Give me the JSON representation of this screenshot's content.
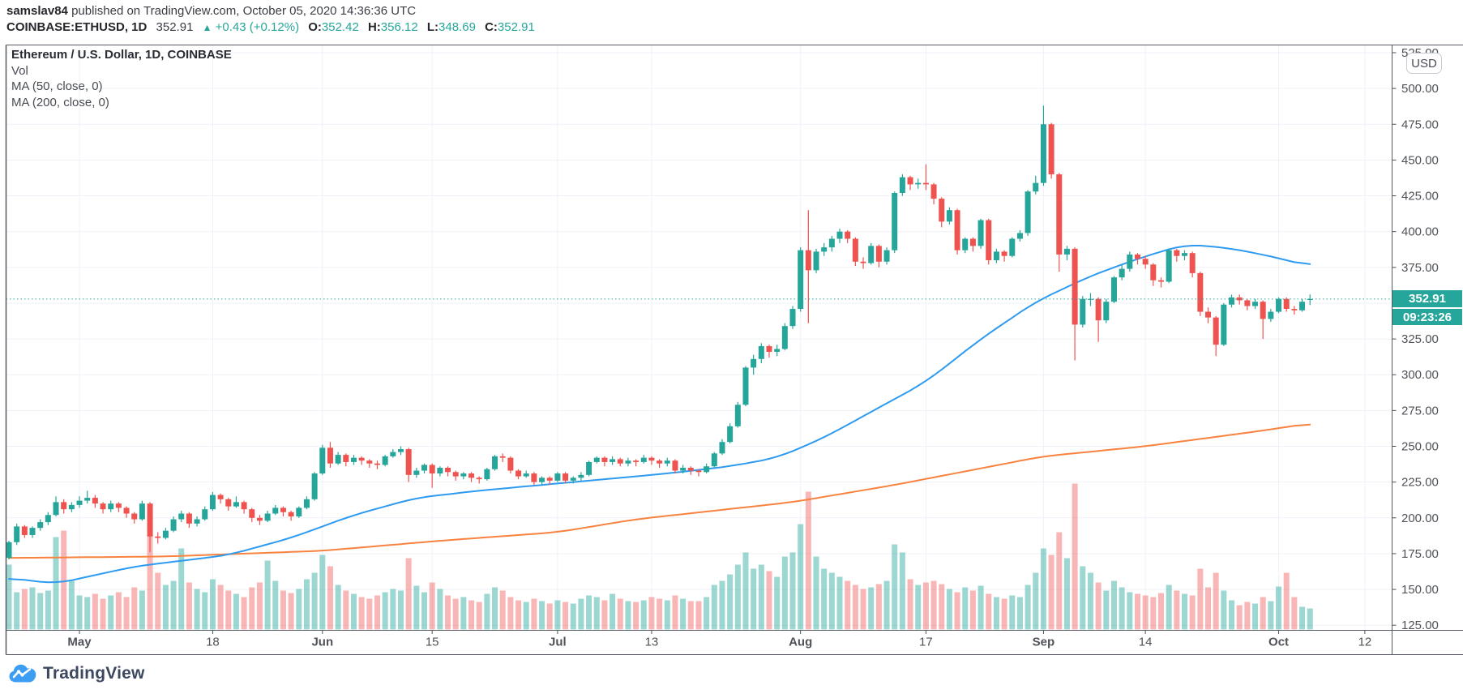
{
  "header": {
    "byline": {
      "author": "samslav84",
      "rest": " published on TradingView.com, October 05, 2020 14:36:36 UTC"
    },
    "quote": {
      "symbol_interval": "COINBASE:ETHUSD, 1D",
      "last": "352.91",
      "direction_icon": "▲",
      "change": "+0.43 (+0.12%)",
      "ohlc": [
        {
          "label": "O:",
          "value": "352.42"
        },
        {
          "label": "H:",
          "value": "356.12"
        },
        {
          "label": "L:",
          "value": "348.69"
        },
        {
          "label": "C:",
          "value": "352.91"
        }
      ]
    }
  },
  "legend": {
    "title": "Ethereum / U.S. Dollar, 1D, COINBASE",
    "rows": [
      "Vol",
      "MA (50, close, 0)",
      "MA (200, close, 0)"
    ]
  },
  "axis": {
    "currency_button": "USD"
  },
  "price_label": {
    "value": "352.91",
    "countdown": "09:23:26"
  },
  "footer": {
    "brand": "TradingView"
  },
  "colors": {
    "up": "#26a69a",
    "down": "#ef5350",
    "vol_up": "rgba(38,166,154,0.45)",
    "vol_down": "rgba(239,83,80,0.42)",
    "ma50": "#2e9bf0",
    "ma200": "#f8823f",
    "grid": "#eef1f7",
    "axis_text": "#4f5258",
    "pane_border": "#555a63",
    "last_price_line": "#26a69a",
    "label_bg": "#26a69a"
  },
  "chart_data": {
    "type": "candlestick",
    "symbol": "COINBASE:ETHUSD",
    "interval": "1D",
    "title": "Ethereum / U.S. Dollar, 1D, COINBASE",
    "start_date": "2020-04-22",
    "end_date": "2020-10-05",
    "last_price": 352.91,
    "y_axis": {
      "label": "USD",
      "ticks": [
        125,
        150,
        175,
        200,
        225,
        250,
        275,
        300,
        325,
        350,
        375,
        400,
        425,
        450,
        475,
        500,
        525
      ],
      "range": [
        121,
        531
      ]
    },
    "x_axis": {
      "ticks": [
        {
          "label": "May",
          "i": 9
        },
        {
          "label": "18",
          "i": 26
        },
        {
          "label": "Jun",
          "i": 40
        },
        {
          "label": "15",
          "i": 54
        },
        {
          "label": "Jul",
          "i": 70
        },
        {
          "label": "13",
          "i": 82
        },
        {
          "label": "Aug",
          "i": 101
        },
        {
          "label": "17",
          "i": 117
        },
        {
          "label": "Sep",
          "i": 132
        },
        {
          "label": "14",
          "i": 145
        },
        {
          "label": "Oct",
          "i": 162
        },
        {
          "label": "12",
          "i": 173
        }
      ]
    },
    "volume_units": "relative",
    "candles": [
      [
        172,
        184,
        171,
        183,
        80
      ],
      [
        183,
        196,
        181,
        194,
        46
      ],
      [
        194,
        195,
        186,
        188,
        50
      ],
      [
        188,
        194,
        186,
        193,
        52
      ],
      [
        193,
        199,
        191,
        197,
        45
      ],
      [
        197,
        204,
        195,
        202,
        48
      ],
      [
        202,
        215,
        201,
        211,
        114
      ],
      [
        211,
        213,
        203,
        206,
        122
      ],
      [
        206,
        211,
        204,
        209,
        60
      ],
      [
        209,
        215,
        207,
        212,
        42
      ],
      [
        212,
        219,
        210,
        214,
        40
      ],
      [
        214,
        216,
        207,
        210,
        44
      ],
      [
        210,
        211,
        203,
        206,
        38
      ],
      [
        206,
        212,
        204,
        210,
        42
      ],
      [
        210,
        211,
        204,
        207,
        46
      ],
      [
        207,
        208,
        200,
        203,
        40
      ],
      [
        203,
        204,
        196,
        199,
        52
      ],
      [
        199,
        212,
        198,
        210,
        48
      ],
      [
        210,
        211,
        176,
        187,
        145
      ],
      [
        187,
        190,
        182,
        186,
        70
      ],
      [
        186,
        193,
        185,
        191,
        55
      ],
      [
        191,
        201,
        190,
        199,
        60
      ],
      [
        199,
        205,
        197,
        203,
        100
      ],
      [
        203,
        204,
        193,
        196,
        58
      ],
      [
        196,
        201,
        194,
        199,
        50
      ],
      [
        199,
        208,
        198,
        206,
        46
      ],
      [
        206,
        218,
        205,
        216,
        62
      ],
      [
        216,
        217,
        210,
        213,
        55
      ],
      [
        213,
        214,
        205,
        208,
        48
      ],
      [
        208,
        215,
        207,
        211,
        44
      ],
      [
        211,
        212,
        203,
        206,
        40
      ],
      [
        206,
        207,
        197,
        200,
        52
      ],
      [
        200,
        202,
        195,
        198,
        58
      ],
      [
        198,
        205,
        197,
        203,
        85
      ],
      [
        203,
        209,
        202,
        207,
        60
      ],
      [
        207,
        208,
        201,
        204,
        48
      ],
      [
        204,
        205,
        198,
        201,
        45
      ],
      [
        201,
        208,
        200,
        207,
        50
      ],
      [
        207,
        215,
        206,
        213,
        62
      ],
      [
        213,
        232,
        212,
        231,
        70
      ],
      [
        231,
        251,
        230,
        249,
        92
      ],
      [
        249,
        253,
        235,
        238,
        78
      ],
      [
        238,
        246,
        237,
        244,
        55
      ],
      [
        244,
        245,
        236,
        239,
        48
      ],
      [
        239,
        244,
        237,
        242,
        44
      ],
      [
        242,
        243,
        237,
        240,
        40
      ],
      [
        240,
        241,
        235,
        238,
        38
      ],
      [
        238,
        240,
        234,
        237,
        42
      ],
      [
        237,
        244,
        236,
        243,
        46
      ],
      [
        243,
        248,
        242,
        246,
        50
      ],
      [
        246,
        250,
        244,
        248,
        48
      ],
      [
        248,
        249,
        225,
        230,
        88
      ],
      [
        230,
        235,
        228,
        233,
        54
      ],
      [
        233,
        238,
        231,
        237,
        46
      ],
      [
        237,
        238,
        221,
        231,
        58
      ],
      [
        231,
        236,
        229,
        235,
        50
      ],
      [
        235,
        236,
        229,
        232,
        42
      ],
      [
        232,
        233,
        226,
        229,
        38
      ],
      [
        229,
        232,
        227,
        231,
        40
      ],
      [
        231,
        232,
        225,
        228,
        36
      ],
      [
        228,
        229,
        224,
        227,
        34
      ],
      [
        227,
        235,
        226,
        234,
        44
      ],
      [
        234,
        244,
        233,
        243,
        52
      ],
      [
        243,
        245,
        239,
        242,
        48
      ],
      [
        242,
        243,
        231,
        233,
        40
      ],
      [
        233,
        234,
        227,
        229,
        36
      ],
      [
        229,
        233,
        228,
        231,
        34
      ],
      [
        231,
        232,
        223,
        225,
        38
      ],
      [
        225,
        229,
        223,
        228,
        35
      ],
      [
        228,
        229,
        223,
        226,
        32
      ],
      [
        226,
        232,
        225,
        231,
        36
      ],
      [
        231,
        232,
        224,
        226,
        34
      ],
      [
        226,
        229,
        224,
        228,
        32
      ],
      [
        228,
        232,
        226,
        230,
        38
      ],
      [
        230,
        240,
        229,
        239,
        42
      ],
      [
        239,
        243,
        238,
        242,
        40
      ],
      [
        242,
        243,
        236,
        239,
        36
      ],
      [
        239,
        243,
        237,
        241,
        44
      ],
      [
        241,
        242,
        236,
        238,
        38
      ],
      [
        238,
        242,
        236,
        240,
        35
      ],
      [
        240,
        241,
        236,
        239,
        34
      ],
      [
        239,
        244,
        238,
        242,
        36
      ],
      [
        242,
        243,
        237,
        240,
        40
      ],
      [
        240,
        241,
        235,
        238,
        38
      ],
      [
        238,
        242,
        236,
        240,
        36
      ],
      [
        240,
        241,
        231,
        233,
        42
      ],
      [
        233,
        237,
        231,
        235,
        38
      ],
      [
        235,
        236,
        230,
        233,
        35
      ],
      [
        233,
        234,
        229,
        232,
        35
      ],
      [
        232,
        238,
        231,
        236,
        40
      ],
      [
        236,
        246,
        235,
        245,
        55
      ],
      [
        245,
        255,
        244,
        253,
        60
      ],
      [
        253,
        266,
        252,
        264,
        68
      ],
      [
        264,
        281,
        263,
        279,
        80
      ],
      [
        279,
        306,
        278,
        305,
        95
      ],
      [
        305,
        314,
        300,
        311,
        75
      ],
      [
        311,
        322,
        308,
        320,
        80
      ],
      [
        320,
        321,
        312,
        316,
        72
      ],
      [
        316,
        321,
        313,
        318,
        65
      ],
      [
        318,
        336,
        317,
        334,
        90
      ],
      [
        334,
        348,
        332,
        346,
        95
      ],
      [
        346,
        389,
        344,
        387,
        130
      ],
      [
        387,
        415,
        336,
        373,
        170
      ],
      [
        373,
        388,
        371,
        386,
        90
      ],
      [
        386,
        392,
        383,
        389,
        75
      ],
      [
        389,
        397,
        386,
        395,
        70
      ],
      [
        395,
        402,
        392,
        400,
        65
      ],
      [
        400,
        401,
        392,
        395,
        60
      ],
      [
        395,
        396,
        376,
        379,
        55
      ],
      [
        379,
        382,
        374,
        378,
        50
      ],
      [
        378,
        392,
        377,
        390,
        52
      ],
      [
        390,
        391,
        375,
        379,
        56
      ],
      [
        379,
        389,
        377,
        387,
        60
      ],
      [
        387,
        428,
        385,
        427,
        105
      ],
      [
        427,
        440,
        425,
        438,
        95
      ],
      [
        438,
        439,
        429,
        433,
        62
      ],
      [
        433,
        437,
        430,
        434,
        55
      ],
      [
        434,
        447,
        429,
        433,
        58
      ],
      [
        433,
        434,
        419,
        423,
        60
      ],
      [
        423,
        424,
        403,
        407,
        56
      ],
      [
        407,
        417,
        405,
        415,
        50
      ],
      [
        415,
        416,
        384,
        387,
        46
      ],
      [
        387,
        396,
        385,
        395,
        52
      ],
      [
        395,
        396,
        386,
        390,
        48
      ],
      [
        390,
        409,
        388,
        408,
        54
      ],
      [
        408,
        409,
        377,
        380,
        44
      ],
      [
        380,
        388,
        378,
        386,
        40
      ],
      [
        386,
        387,
        379,
        383,
        38
      ],
      [
        383,
        396,
        382,
        395,
        42
      ],
      [
        395,
        401,
        393,
        399,
        40
      ],
      [
        399,
        429,
        397,
        428,
        55
      ],
      [
        428,
        439,
        426,
        434,
        70
      ],
      [
        434,
        488,
        432,
        475,
        100
      ],
      [
        475,
        476,
        437,
        440,
        92
      ],
      [
        440,
        441,
        372,
        384,
        120
      ],
      [
        384,
        390,
        380,
        388,
        88
      ],
      [
        388,
        389,
        310,
        335,
        180
      ],
      [
        335,
        355,
        333,
        353,
        78
      ],
      [
        353,
        357,
        348,
        353,
        70
      ],
      [
        353,
        354,
        323,
        338,
        58
      ],
      [
        338,
        353,
        336,
        351,
        48
      ],
      [
        351,
        369,
        350,
        368,
        60
      ],
      [
        368,
        377,
        366,
        374,
        52
      ],
      [
        374,
        386,
        372,
        384,
        46
      ],
      [
        384,
        385,
        377,
        381,
        44
      ],
      [
        381,
        383,
        374,
        377,
        42
      ],
      [
        377,
        378,
        362,
        366,
        40
      ],
      [
        366,
        368,
        361,
        365,
        45
      ],
      [
        365,
        388,
        364,
        387,
        55
      ],
      [
        387,
        388,
        379,
        383,
        48
      ],
      [
        383,
        387,
        380,
        385,
        44
      ],
      [
        385,
        386,
        368,
        371,
        42
      ],
      [
        371,
        372,
        341,
        344,
        75
      ],
      [
        344,
        347,
        336,
        340,
        52
      ],
      [
        340,
        341,
        313,
        321,
        70
      ],
      [
        321,
        350,
        320,
        349,
        48
      ],
      [
        349,
        356,
        347,
        354,
        36
      ],
      [
        354,
        356,
        349,
        352,
        30
      ],
      [
        352,
        353,
        345,
        348,
        34
      ],
      [
        348,
        353,
        346,
        351,
        32
      ],
      [
        351,
        352,
        325,
        339,
        40
      ],
      [
        339,
        346,
        337,
        344,
        35
      ],
      [
        344,
        354,
        343,
        353,
        53
      ],
      [
        353,
        354,
        344,
        346,
        70
      ],
      [
        346,
        348,
        342,
        345,
        40
      ],
      [
        345,
        353,
        344,
        351,
        28
      ],
      [
        352.42,
        356.12,
        348.69,
        352.91,
        26
      ]
    ],
    "ma50_anchors": [
      [
        0,
        158
      ],
      [
        6,
        154
      ],
      [
        16,
        166
      ],
      [
        28,
        174
      ],
      [
        36,
        186
      ],
      [
        44,
        202
      ],
      [
        52,
        214
      ],
      [
        60,
        219
      ],
      [
        68,
        223
      ],
      [
        76,
        227
      ],
      [
        84,
        231
      ],
      [
        92,
        236
      ],
      [
        98,
        242
      ],
      [
        104,
        256
      ],
      [
        110,
        274
      ],
      [
        117,
        295
      ],
      [
        124,
        325
      ],
      [
        131,
        351
      ],
      [
        138,
        369
      ],
      [
        144,
        381
      ],
      [
        150,
        391
      ],
      [
        155,
        389
      ],
      [
        160,
        384
      ],
      [
        166,
        376
      ]
    ],
    "ma200_anchors": [
      [
        0,
        172
      ],
      [
        20,
        173
      ],
      [
        40,
        177
      ],
      [
        55,
        184
      ],
      [
        70,
        190
      ],
      [
        80,
        199
      ],
      [
        100,
        211
      ],
      [
        113,
        223
      ],
      [
        132,
        243
      ],
      [
        145,
        250
      ],
      [
        160,
        261
      ],
      [
        166,
        266
      ]
    ]
  }
}
